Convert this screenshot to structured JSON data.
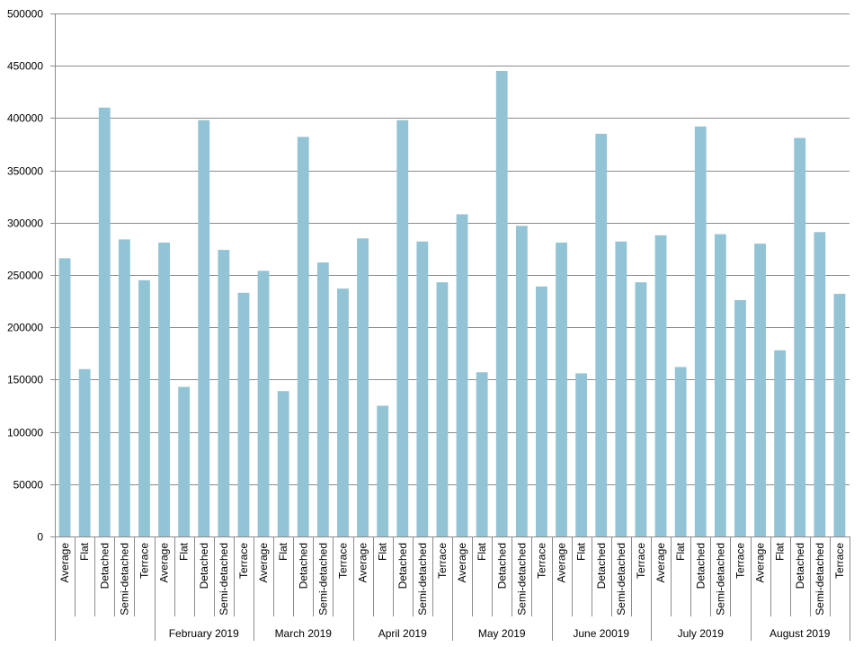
{
  "chart_data": {
    "type": "bar",
    "title": "",
    "xlabel": "",
    "ylabel": "",
    "ylim": [
      0,
      500000
    ],
    "yticks": [
      "0",
      "50000",
      "100000",
      "150000",
      "200000",
      "250000",
      "300000",
      "350000",
      "400000",
      "450000",
      "500000"
    ],
    "grid": true,
    "bar_color": "#93c4d5",
    "gridline_color": "#8c8c8c",
    "groups": [
      {
        "label": "",
        "categories": [
          "Average",
          "Flat",
          "Detached",
          "Semi-detached",
          "Terrace"
        ],
        "values": [
          266000,
          160000,
          410000,
          284000,
          245000
        ]
      },
      {
        "label": "February 2019",
        "categories": [
          "Average",
          "Flat",
          "Detached",
          "Semi-detached",
          "Terrace"
        ],
        "values": [
          281000,
          143000,
          398000,
          274000,
          233000
        ]
      },
      {
        "label": "March 2019",
        "categories": [
          "Average",
          "Flat",
          "Detached",
          "Semi-detached",
          "Terrace"
        ],
        "values": [
          254000,
          139000,
          382000,
          262000,
          237000
        ]
      },
      {
        "label": "April 2019",
        "categories": [
          "Average",
          "Flat",
          "Detached",
          "Semi-detached",
          "Terrace"
        ],
        "values": [
          285000,
          125000,
          398000,
          282000,
          243000
        ]
      },
      {
        "label": "May 2019",
        "categories": [
          "Average",
          "Flat",
          "Detached",
          "Semi-detached",
          "Terrace"
        ],
        "values": [
          308000,
          157000,
          445000,
          297000,
          239000
        ]
      },
      {
        "label": "June 20019",
        "categories": [
          "Average",
          "Flat",
          "Detached",
          "Semi-detached",
          "Terrace"
        ],
        "values": [
          281000,
          156000,
          385000,
          282000,
          243000
        ]
      },
      {
        "label": "July 2019",
        "categories": [
          "Average",
          "Flat",
          "Detached",
          "Semi-detached",
          "Terrace"
        ],
        "values": [
          288000,
          162000,
          392000,
          289000,
          226000
        ]
      },
      {
        "label": "August 2019",
        "categories": [
          "Average",
          "Flat",
          "Detached",
          "Semi-detached",
          "Terrace"
        ],
        "values": [
          280000,
          178000,
          381000,
          291000,
          232000
        ]
      }
    ]
  }
}
